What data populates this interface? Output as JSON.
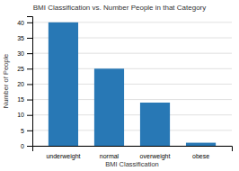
{
  "chart_data": {
    "type": "bar",
    "title": "BMI Classification vs. Number People in that Category",
    "xlabel": "BMI Classification",
    "ylabel": "Number of People",
    "categories": [
      "underweight",
      "normal",
      "overweight",
      "obese"
    ],
    "values": [
      40,
      25,
      14,
      1
    ],
    "color": "#2878b5",
    "ylim": [
      0,
      42
    ],
    "yticks": [
      0,
      5,
      10,
      15,
      20,
      25,
      30,
      35,
      40
    ],
    "grid": true
  }
}
